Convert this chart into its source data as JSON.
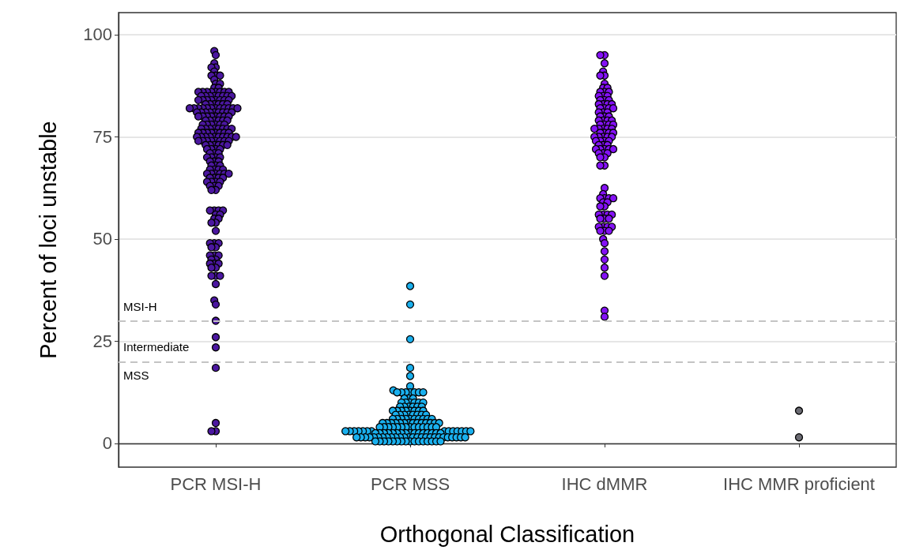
{
  "chart_data": {
    "type": "scatter",
    "xlabel": "Orthogonal Classification",
    "ylabel": "Percent of loci unstable",
    "categories": [
      "PCR MSI-H",
      "PCR MSS",
      "IHC dMMR",
      "IHC MMR proficient"
    ],
    "ylim": [
      -5.8,
      105.4
    ],
    "yticks": [
      0,
      25,
      50,
      75,
      100
    ],
    "grid": "y",
    "marker": "circle",
    "ref_lines": [
      {
        "axis": "y",
        "value": 30,
        "color": "#c4c4c4",
        "line_style": "dashed"
      },
      {
        "axis": "y",
        "value": 20,
        "color": "#c4c4c4",
        "line_style": "dashed"
      }
    ],
    "annotations": [
      "MSI-H",
      "Intermediate",
      "MSS"
    ],
    "series": [
      {
        "color": "#4b17a0",
        "x": [
          "PCR MSI-H",
          "PCR MSI-H",
          "PCR MSI-H",
          "PCR MSI-H",
          "PCR MSI-H",
          "PCR MSI-H",
          "PCR MSI-H",
          "PCR MSI-H",
          "PCR MSI-H",
          "PCR MSI-H",
          "PCR MSI-H",
          "PCR MSI-H",
          "PCR MSI-H",
          "PCR MSI-H",
          "PCR MSI-H",
          "PCR MSI-H",
          "PCR MSI-H",
          "PCR MSI-H",
          "PCR MSI-H",
          "PCR MSI-H",
          "PCR MSI-H",
          "PCR MSI-H",
          "PCR MSI-H",
          "PCR MSI-H",
          "PCR MSI-H",
          "PCR MSI-H",
          "PCR MSI-H",
          "PCR MSI-H",
          "PCR MSI-H",
          "PCR MSI-H",
          "PCR MSI-H",
          "PCR MSI-H",
          "PCR MSI-H",
          "PCR MSI-H",
          "PCR MSI-H",
          "PCR MSI-H",
          "PCR MSI-H",
          "PCR MSI-H",
          "PCR MSI-H",
          "PCR MSI-H",
          "PCR MSI-H",
          "PCR MSI-H",
          "PCR MSI-H",
          "PCR MSI-H",
          "PCR MSI-H",
          "PCR MSI-H",
          "PCR MSI-H",
          "PCR MSI-H",
          "PCR MSI-H",
          "PCR MSI-H",
          "PCR MSI-H",
          "PCR MSI-H",
          "PCR MSI-H",
          "PCR MSI-H",
          "PCR MSI-H",
          "PCR MSI-H",
          "PCR MSI-H",
          "PCR MSI-H",
          "PCR MSI-H",
          "PCR MSI-H",
          "PCR MSI-H",
          "PCR MSI-H",
          "PCR MSI-H",
          "PCR MSI-H",
          "PCR MSI-H",
          "PCR MSI-H",
          "PCR MSI-H",
          "PCR MSI-H",
          "PCR MSI-H",
          "PCR MSI-H",
          "PCR MSI-H",
          "PCR MSI-H",
          "PCR MSI-H",
          "PCR MSI-H",
          "PCR MSI-H",
          "PCR MSI-H",
          "PCR MSI-H",
          "PCR MSI-H",
          "PCR MSI-H",
          "PCR MSI-H",
          "PCR MSI-H",
          "PCR MSI-H",
          "PCR MSI-H",
          "PCR MSI-H",
          "PCR MSI-H",
          "PCR MSI-H",
          "PCR MSI-H",
          "PCR MSI-H",
          "PCR MSI-H",
          "PCR MSI-H",
          "PCR MSI-H",
          "PCR MSI-H",
          "PCR MSI-H",
          "PCR MSI-H",
          "PCR MSI-H",
          "PCR MSI-H",
          "PCR MSI-H",
          "PCR MSI-H",
          "PCR MSI-H",
          "PCR MSI-H",
          "PCR MSI-H",
          "PCR MSI-H",
          "PCR MSI-H",
          "PCR MSI-H",
          "PCR MSI-H",
          "PCR MSI-H",
          "PCR MSI-H",
          "PCR MSI-H",
          "PCR MSI-H",
          "PCR MSI-H",
          "PCR MSI-H",
          "PCR MSI-H",
          "PCR MSI-H",
          "PCR MSI-H",
          "PCR MSI-H",
          "PCR MSI-H",
          "PCR MSI-H",
          "PCR MSI-H",
          "PCR MSI-H",
          "PCR MSI-H",
          "PCR MSI-H",
          "PCR MSI-H",
          "PCR MSI-H",
          "PCR MSI-H",
          "PCR MSI-H",
          "PCR MSI-H",
          "PCR MSI-H",
          "PCR MSI-H",
          "PCR MSI-H",
          "PCR MSI-H",
          "PCR MSI-H",
          "PCR MSI-H",
          "PCR MSI-H",
          "PCR MSI-H",
          "PCR MSI-H",
          "PCR MSI-H",
          "PCR MSI-H",
          "PCR MSI-H",
          "PCR MSI-H",
          "PCR MSI-H",
          "PCR MSI-H",
          "PCR MSI-H",
          "PCR MSI-H",
          "PCR MSI-H",
          "PCR MSI-H",
          "PCR MSI-H",
          "PCR MSI-H",
          "PCR MSI-H",
          "PCR MSI-H",
          "PCR MSI-H",
          "PCR MSI-H",
          "PCR MSI-H",
          "PCR MSI-H",
          "PCR MSI-H",
          "PCR MSI-H",
          "PCR MSI-H",
          "PCR MSI-H",
          "PCR MSI-H",
          "PCR MSI-H",
          "PCR MSI-H",
          "PCR MSI-H",
          "PCR MSI-H",
          "PCR MSI-H",
          "PCR MSI-H",
          "PCR MSI-H",
          "PCR MSI-H",
          "PCR MSI-H",
          "PCR MSI-H",
          "PCR MSI-H",
          "PCR MSI-H",
          "PCR MSI-H",
          "PCR MSI-H",
          "PCR MSI-H",
          "PCR MSI-H",
          "PCR MSI-H",
          "PCR MSI-H",
          "PCR MSI-H",
          "PCR MSI-H",
          "PCR MSI-H",
          "PCR MSI-H",
          "PCR MSI-H",
          "PCR MSI-H",
          "PCR MSI-H",
          "PCR MSI-H",
          "PCR MSI-H",
          "PCR MSI-H",
          "PCR MSI-H",
          "PCR MSI-H",
          "PCR MSI-H",
          "PCR MSI-H",
          "PCR MSI-H",
          "PCR MSI-H",
          "PCR MSI-H",
          "PCR MSI-H",
          "PCR MSI-H",
          "PCR MSI-H",
          "PCR MSI-H",
          "PCR MSI-H",
          "PCR MSI-H",
          "PCR MSI-H",
          "PCR MSI-H",
          "PCR MSI-H",
          "PCR MSI-H",
          "PCR MSI-H"
        ],
        "values": [
          96,
          95,
          93,
          92,
          92,
          91,
          90,
          90,
          90,
          89,
          88,
          88,
          87,
          87,
          86,
          86,
          86,
          86,
          86,
          86,
          86,
          86,
          85,
          85,
          85,
          85,
          85,
          85,
          85,
          85,
          84,
          84,
          84,
          84,
          84,
          84,
          84,
          84,
          83,
          83,
          83,
          83,
          83,
          83,
          82,
          82,
          82,
          82,
          82,
          82,
          82,
          82,
          82,
          82,
          82,
          82,
          81,
          81,
          81,
          81,
          81,
          81,
          81,
          81,
          81,
          80,
          80,
          80,
          80,
          80,
          80,
          80,
          80,
          79,
          79,
          79,
          79,
          79,
          79,
          78,
          78,
          78,
          78,
          78,
          78,
          77,
          77,
          77,
          77,
          77,
          77,
          77,
          77,
          76,
          76,
          76,
          76,
          76,
          76,
          76,
          76,
          75,
          75,
          75,
          75,
          75,
          75,
          75,
          75,
          75,
          75,
          74,
          74,
          74,
          74,
          74,
          74,
          74,
          74,
          73,
          73,
          73,
          73,
          73,
          73,
          72,
          72,
          72,
          72,
          71,
          71,
          71,
          70,
          70,
          70,
          70,
          69,
          69,
          69,
          68,
          68,
          68,
          67,
          67,
          67,
          67,
          66,
          66,
          66,
          66,
          66,
          66,
          65,
          65,
          65,
          65,
          64,
          64,
          64,
          64,
          63,
          63,
          63,
          62,
          62,
          57,
          57,
          57,
          57,
          56,
          56,
          55,
          55,
          54,
          54,
          52,
          49,
          49,
          49,
          48,
          48,
          46,
          46,
          46,
          45,
          45,
          44,
          44,
          44,
          43,
          43,
          41,
          41,
          41,
          39,
          35,
          34,
          30,
          26,
          23.5,
          18.5,
          5,
          3,
          3
        ]
      },
      {
        "color": "#1ab0ee",
        "x": [
          "PCR MSS",
          "PCR MSS",
          "PCR MSS",
          "PCR MSS",
          "PCR MSS",
          "PCR MSS",
          "PCR MSS",
          "PCR MSS",
          "PCR MSS",
          "PCR MSS",
          "PCR MSS",
          "PCR MSS",
          "PCR MSS",
          "PCR MSS",
          "PCR MSS",
          "PCR MSS",
          "PCR MSS",
          "PCR MSS",
          "PCR MSS",
          "PCR MSS",
          "PCR MSS",
          "PCR MSS",
          "PCR MSS",
          "PCR MSS",
          "PCR MSS",
          "PCR MSS",
          "PCR MSS",
          "PCR MSS",
          "PCR MSS",
          "PCR MSS",
          "PCR MSS",
          "PCR MSS",
          "PCR MSS",
          "PCR MSS",
          "PCR MSS",
          "PCR MSS",
          "PCR MSS",
          "PCR MSS",
          "PCR MSS",
          "PCR MSS",
          "PCR MSS",
          "PCR MSS",
          "PCR MSS",
          "PCR MSS",
          "PCR MSS",
          "PCR MSS",
          "PCR MSS",
          "PCR MSS",
          "PCR MSS",
          "PCR MSS",
          "PCR MSS",
          "PCR MSS",
          "PCR MSS",
          "PCR MSS",
          "PCR MSS",
          "PCR MSS",
          "PCR MSS",
          "PCR MSS",
          "PCR MSS",
          "PCR MSS",
          "PCR MSS",
          "PCR MSS",
          "PCR MSS",
          "PCR MSS",
          "PCR MSS",
          "PCR MSS",
          "PCR MSS",
          "PCR MSS",
          "PCR MSS",
          "PCR MSS",
          "PCR MSS",
          "PCR MSS",
          "PCR MSS",
          "PCR MSS",
          "PCR MSS",
          "PCR MSS",
          "PCR MSS",
          "PCR MSS",
          "PCR MSS",
          "PCR MSS",
          "PCR MSS",
          "PCR MSS",
          "PCR MSS",
          "PCR MSS",
          "PCR MSS",
          "PCR MSS",
          "PCR MSS",
          "PCR MSS",
          "PCR MSS",
          "PCR MSS",
          "PCR MSS",
          "PCR MSS",
          "PCR MSS",
          "PCR MSS",
          "PCR MSS",
          "PCR MSS",
          "PCR MSS",
          "PCR MSS",
          "PCR MSS",
          "PCR MSS",
          "PCR MSS",
          "PCR MSS",
          "PCR MSS",
          "PCR MSS",
          "PCR MSS",
          "PCR MSS",
          "PCR MSS",
          "PCR MSS",
          "PCR MSS",
          "PCR MSS",
          "PCR MSS",
          "PCR MSS",
          "PCR MSS",
          "PCR MSS",
          "PCR MSS",
          "PCR MSS",
          "PCR MSS",
          "PCR MSS",
          "PCR MSS",
          "PCR MSS",
          "PCR MSS",
          "PCR MSS",
          "PCR MSS",
          "PCR MSS",
          "PCR MSS",
          "PCR MSS",
          "PCR MSS",
          "PCR MSS",
          "PCR MSS",
          "PCR MSS",
          "PCR MSS",
          "PCR MSS",
          "PCR MSS",
          "PCR MSS",
          "PCR MSS",
          "PCR MSS",
          "PCR MSS",
          "PCR MSS",
          "PCR MSS",
          "PCR MSS",
          "PCR MSS",
          "PCR MSS",
          "PCR MSS",
          "PCR MSS",
          "PCR MSS",
          "PCR MSS",
          "PCR MSS",
          "PCR MSS",
          "PCR MSS",
          "PCR MSS",
          "PCR MSS",
          "PCR MSS",
          "PCR MSS",
          "PCR MSS",
          "PCR MSS"
        ],
        "values": [
          38.5,
          34,
          25.5,
          18.5,
          16.5,
          14,
          13,
          12.5,
          12.5,
          12.5,
          12.5,
          12.5,
          12.5,
          12.5,
          11,
          11,
          11,
          10,
          10,
          10,
          10,
          10,
          10,
          9,
          9,
          9,
          9,
          9,
          9,
          8,
          8,
          8,
          8,
          8,
          8,
          8,
          8,
          7,
          7,
          7,
          7,
          7,
          7,
          7,
          7,
          6,
          6,
          6,
          6,
          6,
          6,
          6,
          6,
          6,
          6,
          5,
          5,
          5,
          5,
          5,
          5,
          5,
          5,
          5,
          5,
          5,
          5,
          5,
          5,
          4,
          4,
          4,
          4,
          4,
          4,
          4,
          4,
          4,
          4,
          4,
          4,
          4,
          4,
          3,
          3,
          3,
          3,
          3,
          3,
          3,
          3,
          3,
          3,
          3,
          3,
          3,
          3,
          2.5,
          2.5,
          2.5,
          2.5,
          2.5,
          2.5,
          2.5,
          2.5,
          2.5,
          2.5,
          2.5,
          2.5,
          2.5,
          2.5,
          2.5,
          2.5,
          1.5,
          1.5,
          1.5,
          1.5,
          1.5,
          1.5,
          1.5,
          1.5,
          1.5,
          1.5,
          1.5,
          1.5,
          1.5,
          1.5,
          1.5,
          1.5,
          1.5,
          1.5,
          1.5,
          1.5,
          1.5,
          1.5,
          1.5,
          1.5,
          1.5,
          1.5,
          0.5,
          0.5,
          0.5,
          0.5,
          0.5,
          0.5,
          0.5,
          0.5,
          0.5,
          0.5,
          0.5,
          0.5,
          0.5,
          0.5,
          0.5,
          0.5
        ]
      },
      {
        "color": "#8411f5",
        "x": [
          "IHC dMMR",
          "IHC dMMR",
          "IHC dMMR",
          "IHC dMMR",
          "IHC dMMR",
          "IHC dMMR",
          "IHC dMMR",
          "IHC dMMR",
          "IHC dMMR",
          "IHC dMMR",
          "IHC dMMR",
          "IHC dMMR",
          "IHC dMMR",
          "IHC dMMR",
          "IHC dMMR",
          "IHC dMMR",
          "IHC dMMR",
          "IHC dMMR",
          "IHC dMMR",
          "IHC dMMR",
          "IHC dMMR",
          "IHC dMMR",
          "IHC dMMR",
          "IHC dMMR",
          "IHC dMMR",
          "IHC dMMR",
          "IHC dMMR",
          "IHC dMMR",
          "IHC dMMR",
          "IHC dMMR",
          "IHC dMMR",
          "IHC dMMR",
          "IHC dMMR",
          "IHC dMMR",
          "IHC dMMR",
          "IHC dMMR",
          "IHC dMMR",
          "IHC dMMR",
          "IHC dMMR",
          "IHC dMMR",
          "IHC dMMR",
          "IHC dMMR",
          "IHC dMMR",
          "IHC dMMR",
          "IHC dMMR",
          "IHC dMMR",
          "IHC dMMR",
          "IHC dMMR",
          "IHC dMMR",
          "IHC dMMR",
          "IHC dMMR",
          "IHC dMMR",
          "IHC dMMR",
          "IHC dMMR",
          "IHC dMMR",
          "IHC dMMR",
          "IHC dMMR",
          "IHC dMMR",
          "IHC dMMR",
          "IHC dMMR",
          "IHC dMMR",
          "IHC dMMR",
          "IHC dMMR",
          "IHC dMMR",
          "IHC dMMR",
          "IHC dMMR",
          "IHC dMMR",
          "IHC dMMR",
          "IHC dMMR",
          "IHC dMMR",
          "IHC dMMR",
          "IHC dMMR",
          "IHC dMMR",
          "IHC dMMR",
          "IHC dMMR",
          "IHC dMMR",
          "IHC dMMR",
          "IHC dMMR",
          "IHC dMMR",
          "IHC dMMR",
          "IHC dMMR",
          "IHC dMMR",
          "IHC dMMR",
          "IHC dMMR",
          "IHC dMMR",
          "IHC dMMR",
          "IHC dMMR",
          "IHC dMMR",
          "IHC dMMR",
          "IHC dMMR",
          "IHC dMMR",
          "IHC dMMR",
          "IHC dMMR",
          "IHC dMMR",
          "IHC dMMR",
          "IHC dMMR",
          "IHC dMMR",
          "IHC dMMR",
          "IHC dMMR",
          "IHC dMMR",
          "IHC dMMR",
          "IHC dMMR",
          "IHC dMMR",
          "IHC dMMR",
          "IHC dMMR"
        ],
        "values": [
          95,
          95,
          93,
          91,
          90,
          90,
          88,
          87,
          87,
          86,
          86,
          86,
          85,
          85,
          85,
          84,
          84,
          84,
          83,
          83,
          83,
          83,
          82,
          82,
          82,
          82,
          81,
          81,
          81,
          80,
          80,
          80,
          79,
          79,
          79,
          79,
          78,
          78,
          78,
          78,
          77,
          77,
          77,
          77,
          77,
          76,
          76,
          76,
          76,
          75,
          75,
          75,
          75,
          75,
          74,
          74,
          74,
          74,
          73,
          73,
          73,
          72,
          72,
          72,
          72,
          72,
          71,
          71,
          71,
          70,
          70,
          68,
          68,
          62.5,
          61,
          60,
          60,
          60,
          60,
          59,
          59,
          58,
          58,
          56,
          56,
          56,
          56,
          55,
          55,
          55,
          53,
          53,
          53,
          53,
          52,
          52,
          52,
          50,
          49,
          47,
          45,
          43,
          41,
          32.5,
          31
        ]
      },
      {
        "color": "#6b6b73",
        "x": [
          "IHC MMR proficient",
          "IHC MMR proficient"
        ],
        "values": [
          8,
          1.5
        ]
      }
    ]
  }
}
